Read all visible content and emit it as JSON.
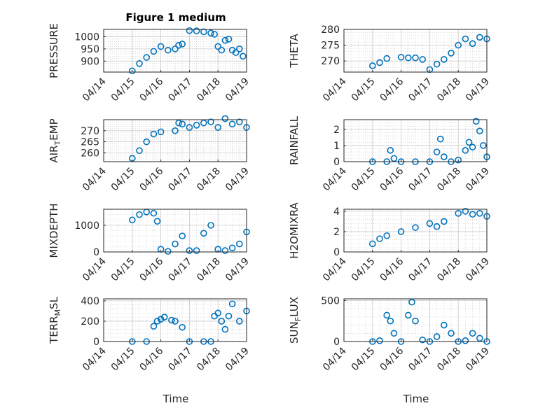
{
  "figure": {
    "title": "Figure 1 medium",
    "xlabel": "Time",
    "colors": {
      "marker": "#0072BD",
      "axis": "#262626",
      "grid": "#c8c8c8"
    }
  },
  "chart_data": [
    {
      "type": "scatter",
      "ylabel": "PRESSURE",
      "x_ticks": [
        "04/14",
        "04/15",
        "04/16",
        "04/17",
        "04/18",
        "04/19"
      ],
      "ylim": [
        855,
        1030
      ],
      "y_ticks": [
        900,
        950,
        1000
      ],
      "grid": true,
      "x": [
        "04/15 00:00",
        "04/15 06:00",
        "04/15 12:00",
        "04/15 18:00",
        "04/16 00:00",
        "04/16 06:00",
        "04/16 12:00",
        "04/16 15:00",
        "04/16 18:00",
        "04/17 00:00",
        "04/17 06:00",
        "04/17 12:00",
        "04/17 18:00",
        "04/17 21:00",
        "04/18 00:00",
        "04/18 03:00",
        "04/18 06:00",
        "04/18 09:00",
        "04/18 12:00",
        "04/18 15:00",
        "04/18 18:00",
        "04/18 21:00"
      ],
      "y": [
        860,
        890,
        915,
        940,
        960,
        945,
        950,
        965,
        970,
        1025,
        1024,
        1020,
        1015,
        1010,
        960,
        945,
        985,
        990,
        945,
        935,
        950,
        920
      ]
    },
    {
      "type": "scatter",
      "ylabel": "THETA",
      "x_ticks": [
        "04/14",
        "04/15",
        "04/16",
        "04/17",
        "04/18",
        "04/19"
      ],
      "ylim": [
        266.5,
        280
      ],
      "y_ticks": [
        270,
        275,
        280
      ],
      "grid": true,
      "x": [
        "04/15 00:00",
        "04/15 06:00",
        "04/15 12:00",
        "04/16 00:00",
        "04/16 06:00",
        "04/16 12:00",
        "04/16 18:00",
        "04/17 00:00",
        "04/17 06:00",
        "04/17 12:00",
        "04/17 18:00",
        "04/18 00:00",
        "04/18 06:00",
        "04/18 12:00",
        "04/18 18:00",
        "04/19 00:00"
      ],
      "y": [
        268.5,
        269.5,
        270.8,
        271.2,
        271.0,
        271.0,
        270.5,
        267.3,
        269.0,
        270.5,
        272.5,
        275.0,
        277.0,
        275.5,
        277.5,
        277.0
      ]
    },
    {
      "type": "scatter",
      "ylabel": "AIR_TEMP",
      "x_ticks": [
        "04/14",
        "04/15",
        "04/16",
        "04/17",
        "04/18",
        "04/19"
      ],
      "ylim": [
        256,
        275
      ],
      "y_ticks": [
        260,
        265,
        270
      ],
      "grid": true,
      "x": [
        "04/15 00:00",
        "04/15 06:00",
        "04/15 12:00",
        "04/15 18:00",
        "04/16 00:00",
        "04/16 12:00",
        "04/16 15:00",
        "04/16 18:00",
        "04/17 00:00",
        "04/17 06:00",
        "04/17 12:00",
        "04/17 18:00",
        "04/18 00:00",
        "04/18 06:00",
        "04/18 12:00",
        "04/18 18:00",
        "04/19 00:00"
      ],
      "y": [
        257.5,
        261.0,
        265.0,
        268.5,
        269.5,
        270.0,
        273.5,
        273.0,
        271.5,
        272.5,
        273.5,
        274.0,
        271.5,
        275.5,
        273.0,
        274.0,
        271.5
      ]
    },
    {
      "type": "scatter",
      "ylabel": "RAINFALL",
      "x_ticks": [
        "04/14",
        "04/15",
        "04/16",
        "04/17",
        "04/18",
        "04/19"
      ],
      "ylim": [
        0,
        2.6
      ],
      "y_ticks": [
        0,
        1,
        2
      ],
      "grid": true,
      "x": [
        "04/15 00:00",
        "04/15 12:00",
        "04/15 15:00",
        "04/15 18:00",
        "04/16 00:00",
        "04/16 12:00",
        "04/17 00:00",
        "04/17 06:00",
        "04/17 09:00",
        "04/17 12:00",
        "04/17 18:00",
        "04/18 00:00",
        "04/18 06:00",
        "04/18 09:00",
        "04/18 12:00",
        "04/18 15:00",
        "04/18 18:00",
        "04/18 21:00",
        "04/19 00:00"
      ],
      "y": [
        0,
        0,
        0.7,
        0.2,
        0,
        0,
        0,
        0.6,
        1.4,
        0.3,
        0,
        0.1,
        0.7,
        1.2,
        0.9,
        2.5,
        1.9,
        1.0,
        0.3
      ]
    },
    {
      "type": "scatter",
      "ylabel": "MIXDEPTH",
      "x_ticks": [
        "04/14",
        "04/15",
        "04/16",
        "04/17",
        "04/18",
        "04/19"
      ],
      "ylim": [
        0,
        1600
      ],
      "y_ticks": [
        0,
        1000
      ],
      "grid": true,
      "x": [
        "04/15 00:00",
        "04/15 06:00",
        "04/15 12:00",
        "04/15 18:00",
        "04/15 21:00",
        "04/16 00:00",
        "04/16 06:00",
        "04/16 12:00",
        "04/16 18:00",
        "04/17 00:00",
        "04/17 06:00",
        "04/17 12:00",
        "04/17 18:00",
        "04/18 00:00",
        "04/18 06:00",
        "04/18 12:00",
        "04/18 18:00",
        "04/19 00:00"
      ],
      "y": [
        1200,
        1400,
        1500,
        1450,
        1150,
        100,
        20,
        300,
        600,
        50,
        50,
        700,
        1000,
        100,
        50,
        150,
        300,
        750
      ]
    },
    {
      "type": "scatter",
      "ylabel": "H2OMIXRA",
      "x_ticks": [
        "04/14",
        "04/15",
        "04/16",
        "04/17",
        "04/18",
        "04/19"
      ],
      "ylim": [
        0,
        4.2
      ],
      "y_ticks": [
        0,
        2,
        4
      ],
      "grid": true,
      "x": [
        "04/15 00:00",
        "04/15 06:00",
        "04/15 12:00",
        "04/16 00:00",
        "04/16 12:00",
        "04/17 00:00",
        "04/17 06:00",
        "04/17 12:00",
        "04/18 00:00",
        "04/18 06:00",
        "04/18 12:00",
        "04/18 18:00",
        "04/19 00:00"
      ],
      "y": [
        0.8,
        1.3,
        1.6,
        2.0,
        2.4,
        2.8,
        2.5,
        3.0,
        3.8,
        4.0,
        3.7,
        3.8,
        3.5
      ]
    },
    {
      "type": "scatter",
      "ylabel": "TERR_MSL",
      "x_ticks": [
        "04/14",
        "04/15",
        "04/16",
        "04/17",
        "04/18",
        "04/19"
      ],
      "ylim": [
        0,
        420
      ],
      "y_ticks": [
        0,
        200,
        400
      ],
      "grid": true,
      "x": [
        "04/15 00:00",
        "04/15 12:00",
        "04/15 18:00",
        "04/15 21:00",
        "04/16 00:00",
        "04/16 03:00",
        "04/16 09:00",
        "04/16 12:00",
        "04/16 18:00",
        "04/17 00:00",
        "04/17 12:00",
        "04/17 18:00",
        "04/17 21:00",
        "04/18 00:00",
        "04/18 03:00",
        "04/18 06:00",
        "04/18 09:00",
        "04/18 12:00",
        "04/18 18:00",
        "04/19 00:00"
      ],
      "y": [
        0,
        0,
        150,
        200,
        220,
        240,
        210,
        200,
        140,
        0,
        0,
        0,
        250,
        280,
        200,
        120,
        250,
        370,
        200,
        300
      ]
    },
    {
      "type": "scatter",
      "ylabel": "SUN_FLUX",
      "x_ticks": [
        "04/14",
        "04/15",
        "04/16",
        "04/17",
        "04/18",
        "04/19"
      ],
      "ylim": [
        0,
        520
      ],
      "y_ticks": [
        0,
        500
      ],
      "grid": true,
      "x": [
        "04/15 00:00",
        "04/15 06:00",
        "04/15 12:00",
        "04/15 15:00",
        "04/15 18:00",
        "04/16 00:00",
        "04/16 06:00",
        "04/16 09:00",
        "04/16 12:00",
        "04/16 18:00",
        "04/17 00:00",
        "04/17 06:00",
        "04/17 12:00",
        "04/17 18:00",
        "04/18 00:00",
        "04/18 06:00",
        "04/18 12:00",
        "04/18 18:00",
        "04/19 00:00"
      ],
      "y": [
        0,
        10,
        320,
        250,
        100,
        0,
        320,
        480,
        250,
        20,
        0,
        60,
        200,
        100,
        0,
        10,
        100,
        40,
        0
      ]
    }
  ]
}
